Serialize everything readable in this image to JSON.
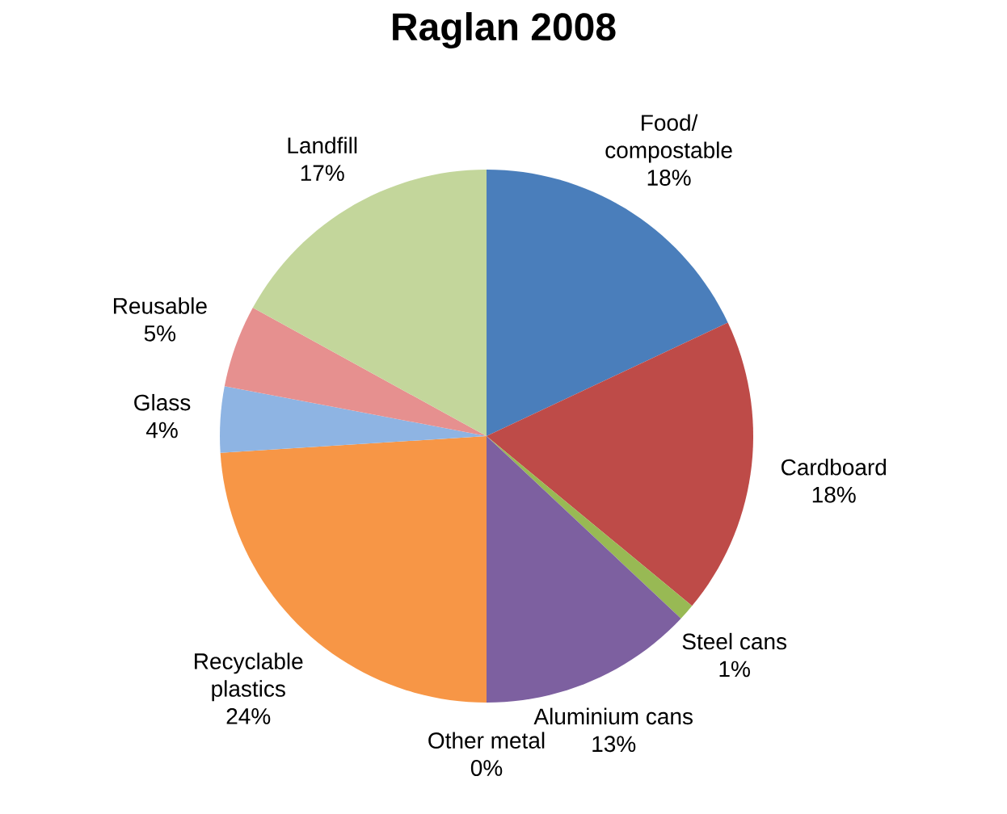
{
  "chart_data": {
    "type": "pie",
    "title": "Raglan 2008",
    "categories": [
      "Food/ compostable",
      "Cardboard",
      "Steel cans",
      "Aluminium cans",
      "Other metal",
      "Recyclable plastics",
      "Glass",
      "Reusable",
      "Landfill"
    ],
    "values": [
      18,
      18,
      1,
      13,
      0,
      24,
      4,
      5,
      17
    ],
    "value_labels": [
      "18%",
      "18%",
      "1%",
      "13%",
      "0%",
      "24%",
      "4%",
      "5%",
      "17%"
    ],
    "colors": [
      "#4a7ebb",
      "#be4b48",
      "#98b954",
      "#7d60a0",
      "#46aac5",
      "#f79646",
      "#8eb4e3",
      "#e6908f",
      "#c3d69b"
    ]
  }
}
